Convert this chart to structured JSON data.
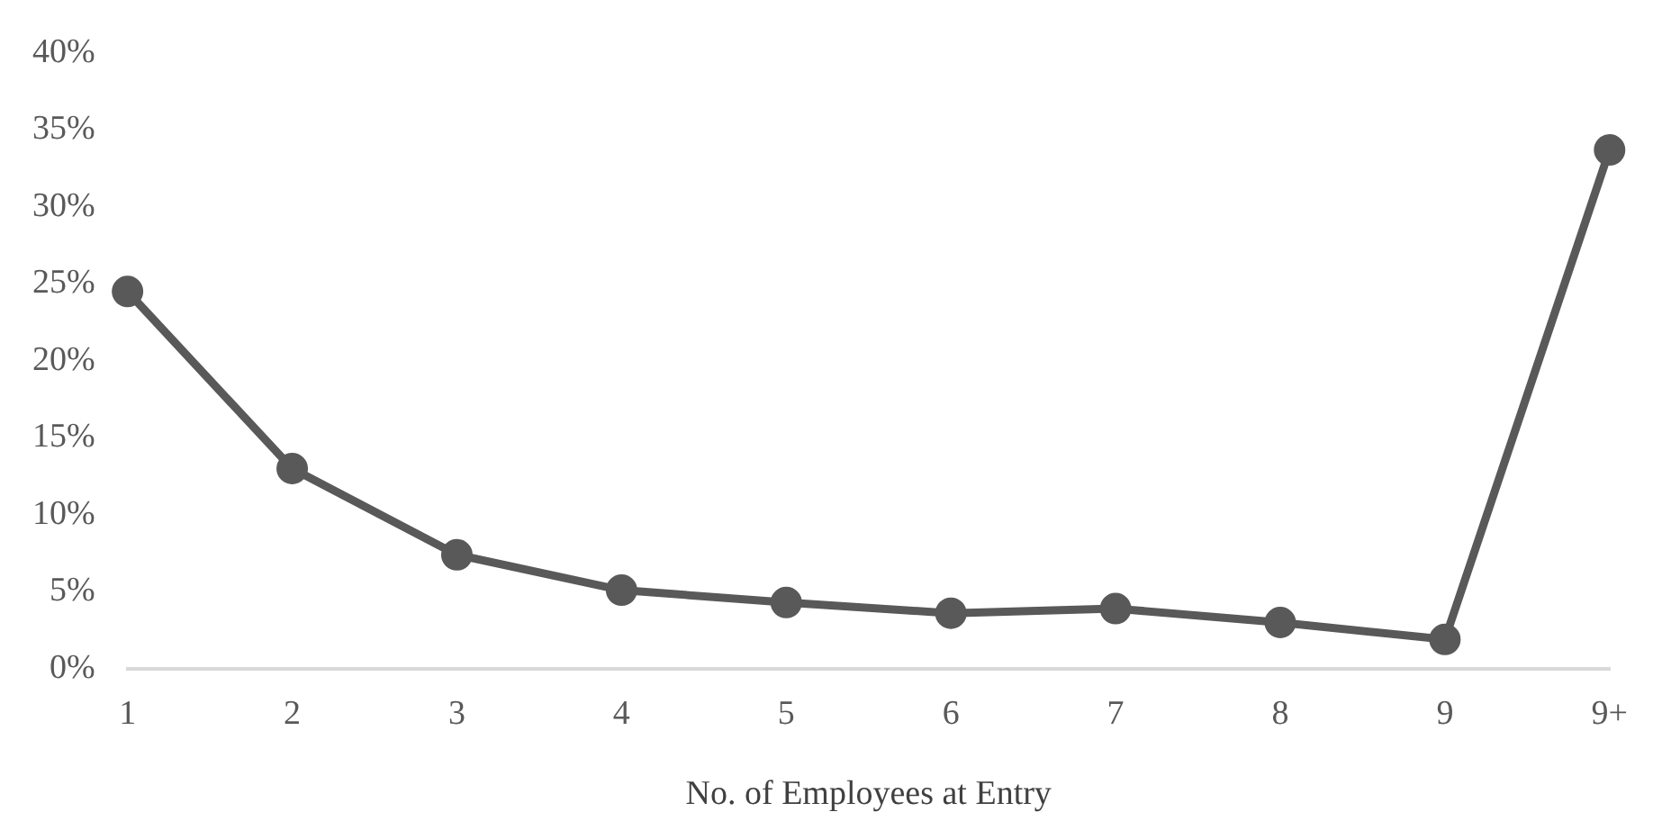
{
  "chart_data": {
    "type": "line",
    "xlabel": "No. of Employees at Entry",
    "categories": [
      "1",
      "2",
      "3",
      "4",
      "5",
      "6",
      "7",
      "8",
      "9",
      "9+"
    ],
    "series": [
      {
        "color": "#595959",
        "values": [
          24.5,
          13,
          7.4,
          5.1,
          4.3,
          3.6,
          3.9,
          3,
          1.9,
          33.7
        ]
      }
    ],
    "ylim": [
      0,
      40
    ],
    "yticks": [
      {
        "value": 0,
        "label": "0%"
      },
      {
        "value": 5,
        "label": "5%"
      },
      {
        "value": 10,
        "label": "10%"
      },
      {
        "value": 15,
        "label": "15%"
      },
      {
        "value": 20,
        "label": "20%"
      },
      {
        "value": 25,
        "label": "25%"
      },
      {
        "value": 30,
        "label": "30%"
      },
      {
        "value": 35,
        "label": "35%"
      },
      {
        "value": 40,
        "label": "40%"
      }
    ],
    "grid": false,
    "legend": false,
    "marker": "circle",
    "line_style": "solid"
  }
}
